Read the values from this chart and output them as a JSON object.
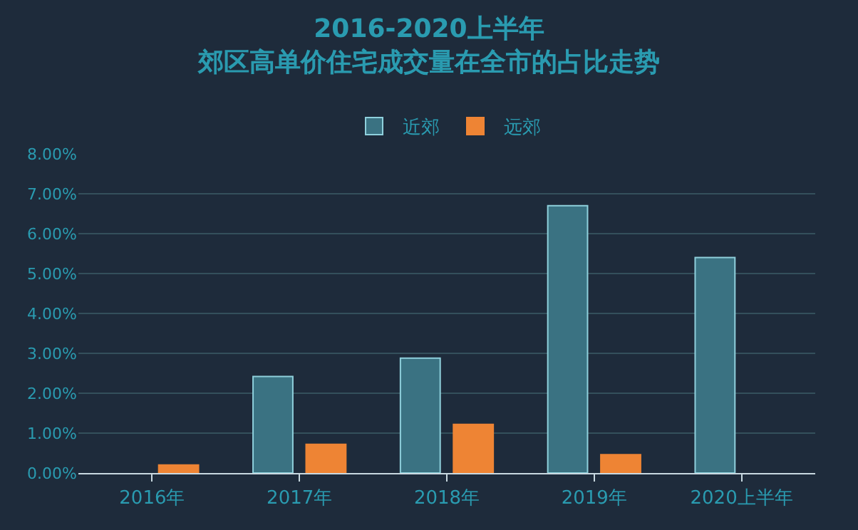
{
  "chart_data": {
    "type": "bar",
    "title": "2016-2020上半年",
    "subtitle": "郊区高单价住宅成交量在全市的占比走势",
    "categories": [
      "2016年",
      "2017年",
      "2018年",
      "2019年",
      "2020上半年"
    ],
    "series": [
      {
        "name": "近郊",
        "color": "#3a7282",
        "values": [
          null,
          2.42,
          2.88,
          6.7,
          5.4
        ]
      },
      {
        "name": "远郊",
        "color": "#ee8434",
        "values": [
          0.2,
          0.72,
          1.22,
          0.46,
          null
        ]
      }
    ],
    "ylim": [
      0,
      8
    ],
    "yticks": [
      {
        "value": 0,
        "label": "0.00%"
      },
      {
        "value": 1,
        "label": "1.00%"
      },
      {
        "value": 2,
        "label": "2.00%"
      },
      {
        "value": 3,
        "label": "3.00%"
      },
      {
        "value": 4,
        "label": "4.00%"
      },
      {
        "value": 5,
        "label": "5.00%"
      },
      {
        "value": 6,
        "label": "6.00%"
      },
      {
        "value": 7,
        "label": "7.00%"
      },
      {
        "value": 8,
        "label": "8.00%"
      }
    ],
    "grid": "y",
    "legend": "top"
  }
}
